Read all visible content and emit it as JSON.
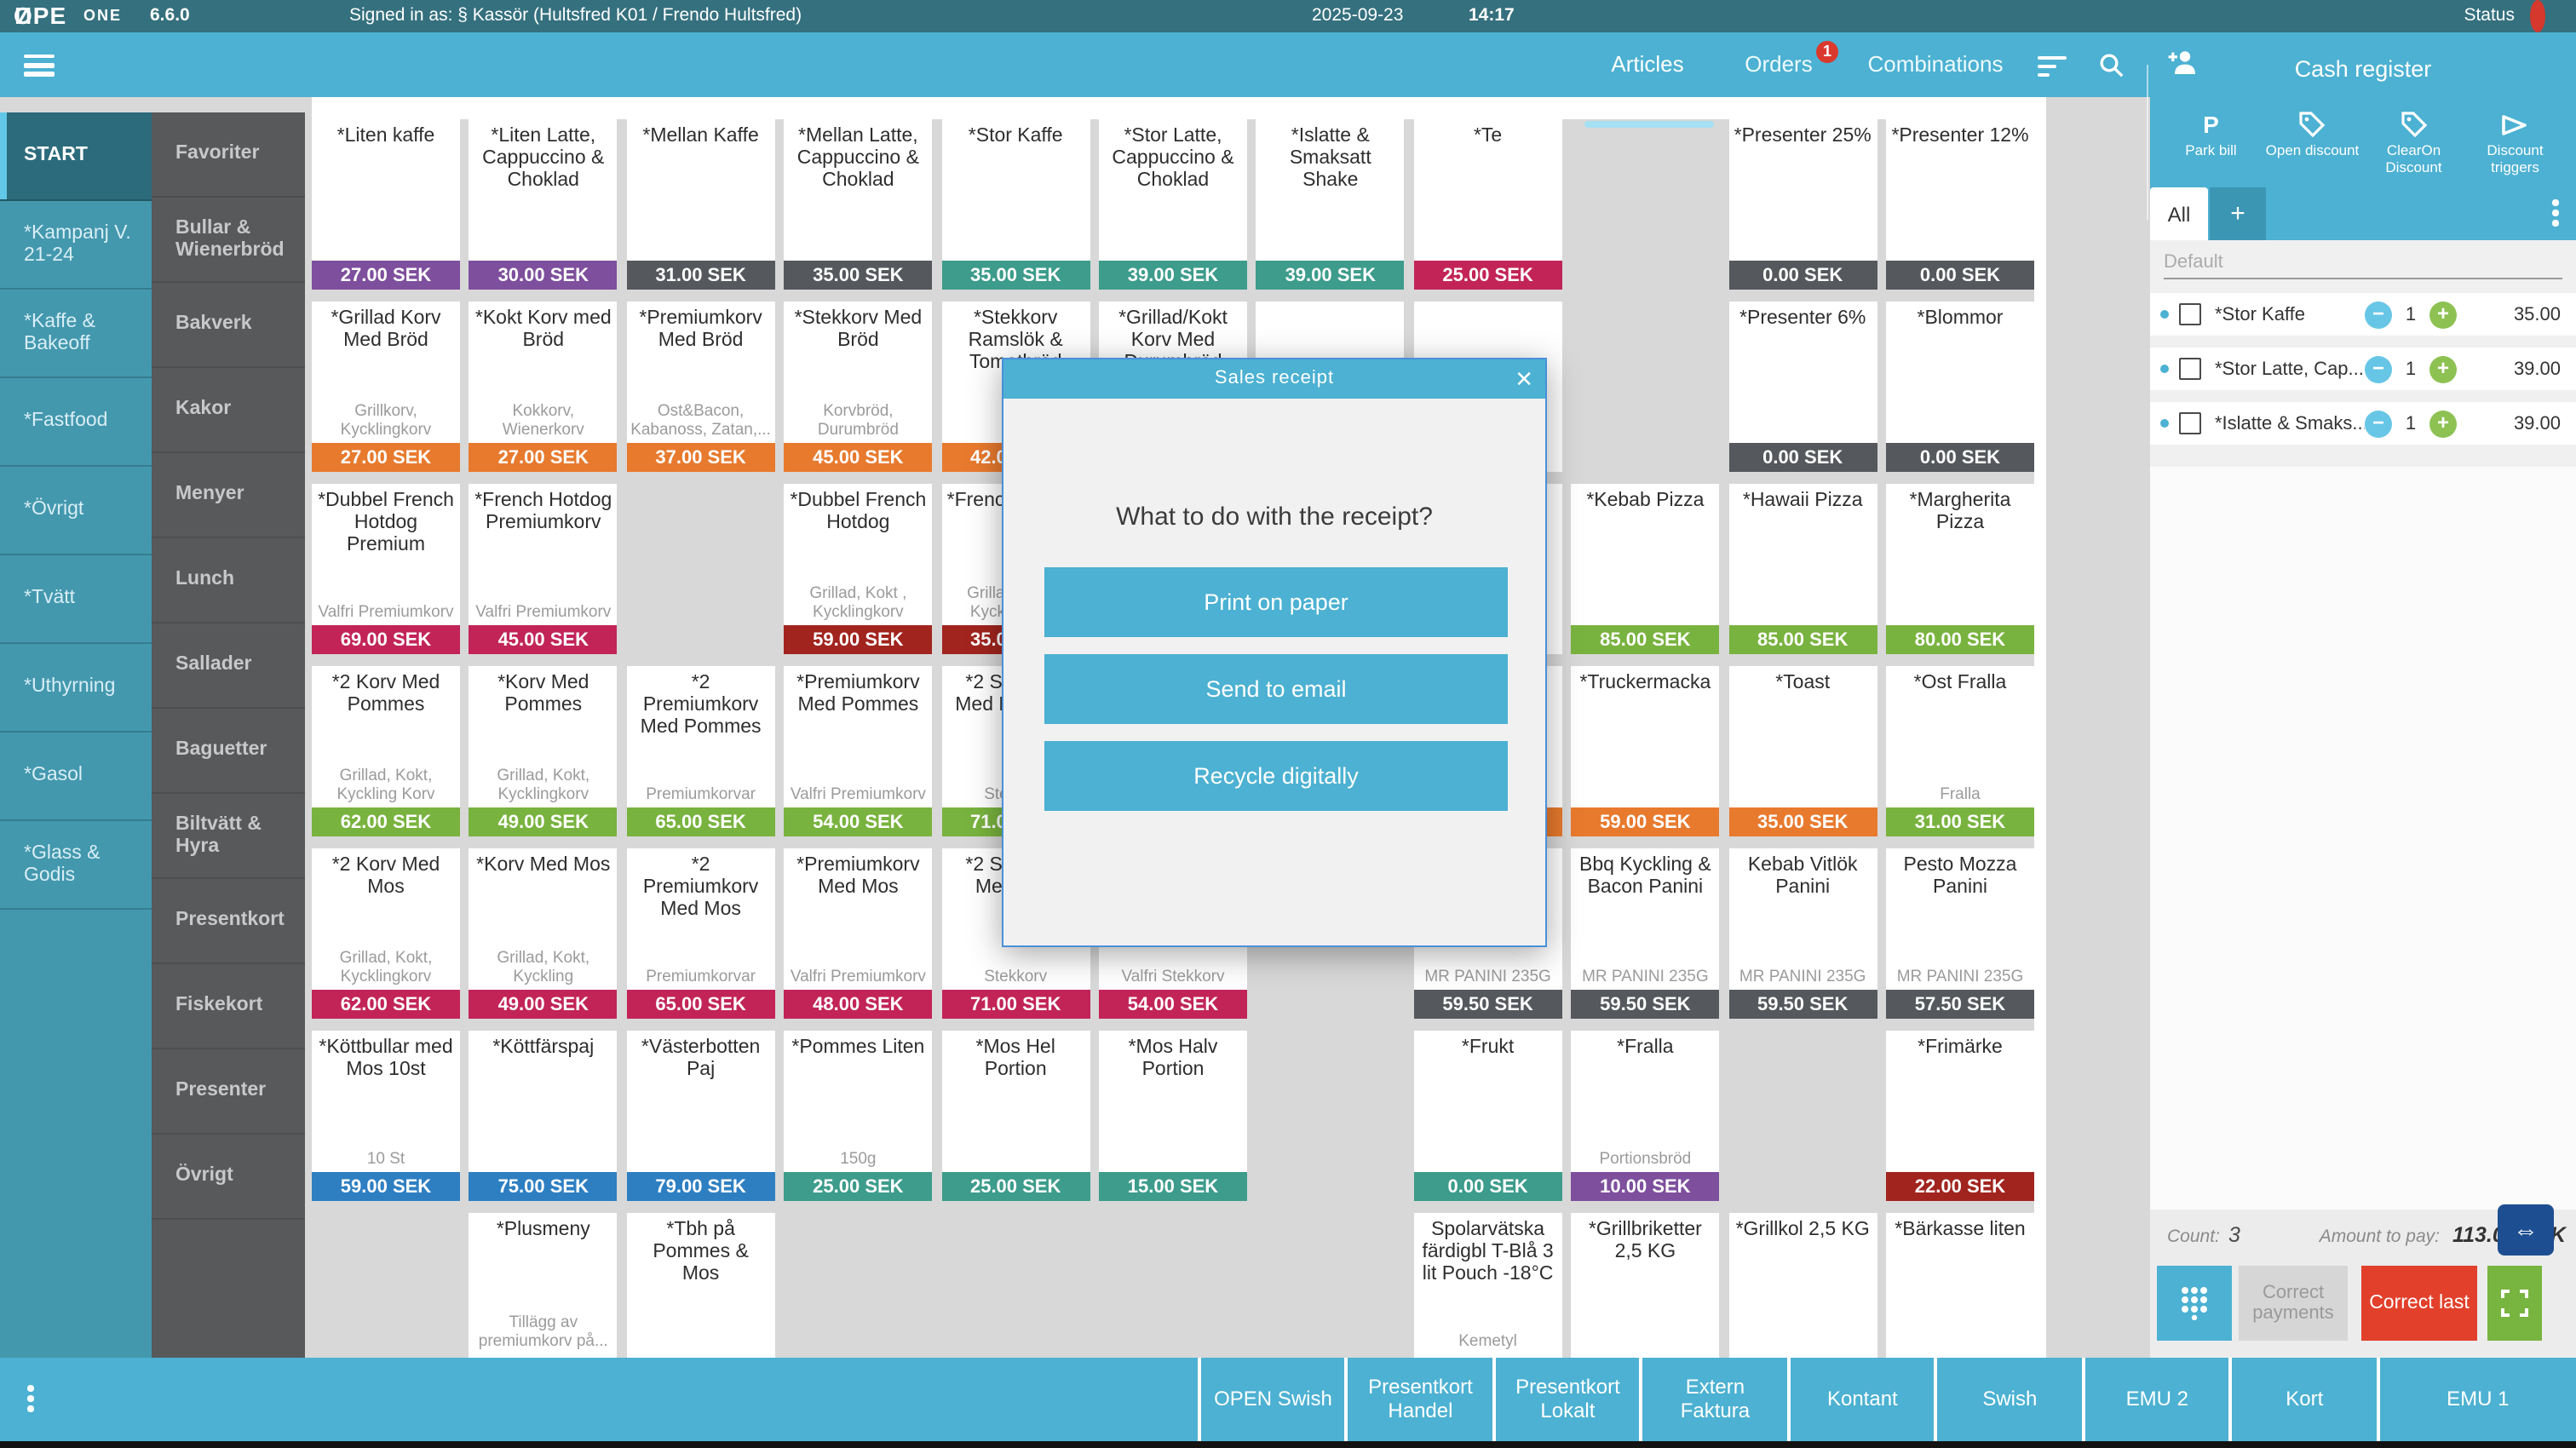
{
  "top_bar": {
    "logo": "OPE",
    "logo_flip": "N",
    "logo_one": "ONE",
    "version": "6.6.0",
    "signed_in": "Signed in as: § Kassör (Hultsfred K01 / Frendo Hultsfred)",
    "date": "2025-09-23",
    "time": "14:17",
    "status_label": "Status",
    "status_color": "#d5382c"
  },
  "nav": {
    "tabs": [
      {
        "label": "Articles",
        "active": true
      },
      {
        "label": "Orders",
        "badge": "1"
      },
      {
        "label": "Combinations"
      }
    ]
  },
  "sidebar": {
    "primary": [
      {
        "label": "START",
        "active": true
      },
      {
        "label": "*Kampanj V. 21-24"
      },
      {
        "label": "*Kaffe & Bakeoff"
      },
      {
        "label": "*Fastfood"
      },
      {
        "label": "*Övrigt"
      },
      {
        "label": "*Tvätt"
      },
      {
        "label": "*Uthyrning"
      },
      {
        "label": "*Gasol"
      },
      {
        "label": "*Glass & Godis"
      }
    ],
    "secondary": [
      "Favoriter",
      "Bullar & Wienerbröd",
      "Bakverk",
      "Kakor",
      "Menyer",
      "Lunch",
      "Sallader",
      "Baguetter",
      "Biltvätt & Hyra",
      "Presentkort",
      "Fiskekort",
      "Presenter",
      "Övrigt"
    ]
  },
  "grid": {
    "colors": {
      "purple": "#7e4f9d",
      "grey": "#55585c",
      "teal": "#3d9c8b",
      "crimson": "#c22458",
      "orange": "#e87a2e",
      "darkred": "#a1241e",
      "lightgreen": "#79b33f",
      "blue": "#2e7fc2"
    },
    "rows": [
      {
        "cells": [
          {
            "c": 1,
            "n": "*Liten kaffe",
            "p": "27.00 SEK",
            "k": "purple"
          },
          {
            "c": 2,
            "n": "*Liten Latte, Cappuccino & Choklad",
            "p": "30.00 SEK",
            "k": "purple"
          },
          {
            "c": 3,
            "n": "*Mellan Kaffe",
            "p": "31.00 SEK",
            "k": "grey"
          },
          {
            "c": 4,
            "n": "*Mellan Latte, Cappuccino & Choklad",
            "p": "35.00 SEK",
            "k": "grey"
          },
          {
            "c": 5,
            "n": "*Stor Kaffe",
            "p": "35.00 SEK",
            "k": "teal"
          },
          {
            "c": 6,
            "n": "*Stor Latte, Cappuccino & Choklad",
            "p": "39.00 SEK",
            "k": "teal"
          },
          {
            "c": 7,
            "n": "*Islatte & Smaksatt Shake",
            "p": "39.00 SEK",
            "k": "teal"
          },
          {
            "c": 8,
            "n": "*Te",
            "p": "25.00 SEK",
            "k": "crimson"
          },
          {
            "c": 10,
            "n": "*Presenter 25%",
            "p": "0.00 SEK",
            "k": "grey"
          },
          {
            "c": 11,
            "n": "*Presenter 12%",
            "p": "0.00 SEK",
            "k": "grey"
          }
        ]
      },
      {
        "cells": [
          {
            "c": 1,
            "n": "*Grillad Korv Med Bröd",
            "s": "Grillkorv, Kycklingkorv",
            "p": "27.00 SEK",
            "k": "orange"
          },
          {
            "c": 2,
            "n": "*Kokt Korv med Bröd",
            "s": "Kokkorv, Wienerkorv",
            "p": "27.00 SEK",
            "k": "orange"
          },
          {
            "c": 3,
            "n": "*Premiumkorv Med Bröd",
            "s": "Ost&Bacon, Kabanoss, Zatan,...",
            "p": "37.00 SEK",
            "k": "orange"
          },
          {
            "c": 4,
            "n": "*Stekkorv Med Bröd",
            "s": "Korvbröd, Durumbröd",
            "p": "45.00 SEK",
            "k": "orange"
          },
          {
            "c": 5,
            "n": "*Stekkorv Ramslök & Tomatbröd",
            "p": "42.00 SEK",
            "k": "orange"
          },
          {
            "c": 6,
            "n": "*Grillad/Kokt Korv Med Durumbröd",
            "p": "",
            "k": ""
          },
          {
            "c": 7,
            "n": "",
            "p": "",
            "k": ""
          },
          {
            "c": 8,
            "n": "",
            "p": "",
            "k": ""
          },
          {
            "c": 10,
            "n": "*Presenter 6%",
            "p": "0.00 SEK",
            "k": "grey"
          },
          {
            "c": 11,
            "n": "*Blommor",
            "p": "0.00 SEK",
            "k": "grey"
          }
        ]
      },
      {
        "cells": [
          {
            "c": 1,
            "n": "*Dubbel French Hotdog Premium",
            "s": "Valfri Premiumkorv",
            "p": "69.00 SEK",
            "k": "crimson"
          },
          {
            "c": 2,
            "n": "*French Hotdog Premiumkorv",
            "s": "Valfri Premiumkorv",
            "p": "45.00 SEK",
            "k": "crimson"
          },
          {
            "c": 4,
            "n": "*Dubbel French Hotdog",
            "s": "Grillad, Kokt , Kycklingkorv",
            "p": "59.00 SEK",
            "k": "darkred"
          },
          {
            "c": 5,
            "n": "*French Hotdog",
            "s": "Grillad, Kokt , Kycklingkorv",
            "p": "35.00 SEK",
            "k": "darkred"
          },
          {
            "c": 8,
            "n": "",
            "p": "",
            "k": ""
          },
          {
            "c": 9,
            "n": "*Kebab Pizza",
            "p": "85.00 SEK",
            "k": "lightgreen"
          },
          {
            "c": 10,
            "n": "*Hawaii Pizza",
            "p": "85.00 SEK",
            "k": "lightgreen"
          },
          {
            "c": 11,
            "n": "*Margherita Pizza",
            "p": "80.00 SEK",
            "k": "lightgreen"
          }
        ]
      },
      {
        "cells": [
          {
            "c": 1,
            "n": "*2 Korv Med Pommes",
            "s": "Grillad, Kokt, Kyckling Korv",
            "p": "62.00 SEK",
            "k": "lightgreen"
          },
          {
            "c": 2,
            "n": "*Korv Med Pommes",
            "s": "Grillad, Kokt, Kycklingkorv",
            "p": "49.00 SEK",
            "k": "lightgreen"
          },
          {
            "c": 3,
            "n": "*2 Premiumkorv Med Pommes",
            "s": "Premiumkorvar",
            "p": "65.00 SEK",
            "k": "lightgreen"
          },
          {
            "c": 4,
            "n": "*Premiumkorv Med Pommes",
            "s": "Valfri Premiumkorv",
            "p": "54.00 SEK",
            "k": "lightgreen"
          },
          {
            "c": 5,
            "n": "*2 Stekkorv Med Pommes",
            "s": "Stekkorv",
            "p": "71.00 SEK",
            "k": "lightgreen"
          },
          {
            "c": 8,
            "n": "",
            "p": "",
            "k": "orange"
          },
          {
            "c": 9,
            "n": "*Truckermacka",
            "p": "59.00 SEK",
            "k": "orange"
          },
          {
            "c": 10,
            "n": "*Toast",
            "p": "35.00 SEK",
            "k": "orange"
          },
          {
            "c": 11,
            "n": "*Ost Fralla",
            "s": "Fralla",
            "p": "31.00 SEK",
            "k": "lightgreen"
          }
        ]
      },
      {
        "cells": [
          {
            "c": 1,
            "n": "*2 Korv Med Mos",
            "s": "Grillad, Kokt, Kycklingkorv",
            "p": "62.00 SEK",
            "k": "crimson"
          },
          {
            "c": 2,
            "n": "*Korv Med Mos",
            "s": "Grillad, Kokt, Kyckling",
            "p": "49.00 SEK",
            "k": "crimson"
          },
          {
            "c": 3,
            "n": "*2 Premiumkorv Med Mos",
            "s": "Premiumkorvar",
            "p": "65.00 SEK",
            "k": "crimson"
          },
          {
            "c": 4,
            "n": "*Premiumkorv Med Mos",
            "s": "Valfri Premiumkorv",
            "p": "48.00 SEK",
            "k": "crimson"
          },
          {
            "c": 5,
            "n": "*2 Stekkorv Med Mos",
            "s": "Stekkorv",
            "p": "71.00 SEK",
            "k": "crimson"
          },
          {
            "c": 6,
            "n": "",
            "s": "Valfri Stekkorv",
            "p": "54.00 SEK",
            "k": "crimson"
          },
          {
            "c": 8,
            "n": "",
            "s": "MR PANINI 235G",
            "p": "59.50 SEK",
            "k": "grey"
          },
          {
            "c": 9,
            "n": "Bbq Kyckling & Bacon Panini",
            "s": "MR PANINI 235G",
            "p": "59.50 SEK",
            "k": "grey"
          },
          {
            "c": 10,
            "n": "Kebab Vitlök Panini",
            "s": "MR PANINI 235G",
            "p": "59.50 SEK",
            "k": "grey"
          },
          {
            "c": 11,
            "n": "Pesto Mozza Panini",
            "s": "MR PANINI 235G",
            "p": "57.50 SEK",
            "k": "grey"
          }
        ]
      },
      {
        "cells": [
          {
            "c": 1,
            "n": "*Köttbullar med Mos 10st",
            "s": "10 St",
            "p": "59.00 SEK",
            "k": "blue"
          },
          {
            "c": 2,
            "n": "*Köttfärspaj",
            "p": "75.00 SEK",
            "k": "blue"
          },
          {
            "c": 3,
            "n": "*Västerbotten Paj",
            "p": "79.00 SEK",
            "k": "blue"
          },
          {
            "c": 4,
            "n": "*Pommes Liten",
            "s": "150g",
            "p": "25.00 SEK",
            "k": "teal"
          },
          {
            "c": 5,
            "n": "*Mos Hel Portion",
            "p": "25.00 SEK",
            "k": "teal"
          },
          {
            "c": 6,
            "n": "*Mos Halv Portion",
            "p": "15.00 SEK",
            "k": "teal"
          },
          {
            "c": 8,
            "n": "*Frukt",
            "p": "0.00 SEK",
            "k": "teal"
          },
          {
            "c": 9,
            "n": "*Fralla",
            "s": "Portionsbröd",
            "p": "10.00 SEK",
            "k": "purple"
          },
          {
            "c": 11,
            "n": "*Frimärke",
            "p": "22.00 SEK",
            "k": "darkred"
          }
        ]
      },
      {
        "cells": [
          {
            "c": 2,
            "n": "*Plusmeny",
            "s": "Tillägg av premiumkorv på...",
            "p": "",
            "k": ""
          },
          {
            "c": 3,
            "n": "*Tbh på Pommes & Mos",
            "p": "",
            "k": ""
          },
          {
            "c": 8,
            "n": "Spolarvätska färdigbl T-Blå 3 lit Pouch -18°C",
            "s": "Kemetyl",
            "p": "",
            "k": ""
          },
          {
            "c": 9,
            "n": "*Grillbriketter 2,5 KG",
            "p": "",
            "k": ""
          },
          {
            "c": 10,
            "n": "*Grillkol 2,5 KG",
            "p": "",
            "k": ""
          },
          {
            "c": 11,
            "n": "*Bärkasse liten",
            "p": "",
            "k": ""
          }
        ]
      }
    ]
  },
  "modal": {
    "title": "Sales receipt",
    "close": "✕",
    "question": "What to do with the receipt?",
    "buttons": [
      "Print on paper",
      "Send to email",
      "Recycle digitally"
    ]
  },
  "cart": {
    "title": "Cash register",
    "actions": [
      {
        "label": "Park bill"
      },
      {
        "label": "Open discount"
      },
      {
        "label": "ClearOn Discount"
      },
      {
        "label": "Discount triggers"
      }
    ],
    "tab_all": "All",
    "tab_add": "+",
    "default_placeholder": "Default",
    "items": [
      {
        "name": "*Stor Kaffe",
        "qty": "1",
        "price": "35.00"
      },
      {
        "name": "*Stor Latte, Cap...",
        "qty": "1",
        "price": "39.00"
      },
      {
        "name": "*Islatte & Smaks...",
        "qty": "1",
        "price": "39.00"
      }
    ],
    "count_label": "Count:",
    "count": "3",
    "amount_label": "Amount to pay:",
    "amount": "113.00 SEK",
    "correct_payments": "Correct payments",
    "correct_last": "Correct last"
  },
  "payments": {
    "buttons": [
      "OPEN Swish",
      "Presentkort Handel",
      "Presentkort Lokalt",
      "Extern Faktura",
      "Kontant",
      "Swish",
      "EMU 2",
      "Kort",
      "EMU 1"
    ]
  }
}
